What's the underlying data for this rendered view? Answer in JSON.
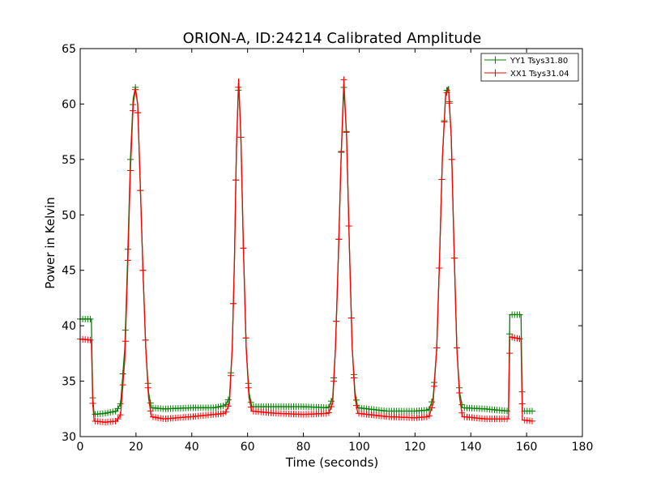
{
  "chart_data": {
    "type": "line",
    "title": "ORION-A, ID:24214 Calibrated Amplitude",
    "xlabel": "Time (seconds)",
    "ylabel": "Power in Kelvin",
    "xlim": [
      0,
      180
    ],
    "ylim": [
      30,
      65
    ],
    "xticks": [
      0,
      20,
      40,
      60,
      80,
      100,
      120,
      140,
      160,
      180
    ],
    "yticks": [
      30,
      35,
      40,
      45,
      50,
      55,
      60,
      65
    ],
    "xtick_labels": [
      "0",
      "20",
      "40",
      "60",
      "80",
      "100",
      "120",
      "140",
      "160",
      "180"
    ],
    "ytick_labels": [
      "30",
      "35",
      "40",
      "45",
      "50",
      "55",
      "60",
      "65"
    ],
    "grid": false,
    "legend_position": "top-right",
    "marker": "+",
    "series": [
      {
        "name": "YY1 Tsys31.80",
        "color": "#008000",
        "points": [
          [
            0,
            40.6
          ],
          [
            4,
            40.6
          ],
          [
            4.5,
            33.5
          ],
          [
            5,
            32.0
          ],
          [
            9,
            32.1
          ],
          [
            13,
            32.3
          ],
          [
            14.5,
            33.0
          ],
          [
            16,
            38.0
          ],
          [
            17,
            46.0
          ],
          [
            18,
            55.0
          ],
          [
            19,
            60.5
          ],
          [
            19.8,
            61.5
          ],
          [
            20.6,
            60.0
          ],
          [
            21.5,
            53.0
          ],
          [
            22.5,
            45.0
          ],
          [
            23.5,
            38.0
          ],
          [
            24.5,
            34.0
          ],
          [
            25.5,
            32.6
          ],
          [
            30,
            32.5
          ],
          [
            40,
            32.6
          ],
          [
            48,
            32.6
          ],
          [
            52,
            32.8
          ],
          [
            53.5,
            33.5
          ],
          [
            54.5,
            38.0
          ],
          [
            55.3,
            46.0
          ],
          [
            56,
            56.0
          ],
          [
            56.8,
            62.0
          ],
          [
            57.6,
            57.0
          ],
          [
            58.5,
            47.0
          ],
          [
            59.5,
            38.0
          ],
          [
            60.5,
            34.0
          ],
          [
            61.5,
            32.7
          ],
          [
            70,
            32.7
          ],
          [
            80,
            32.7
          ],
          [
            89,
            32.6
          ],
          [
            90.5,
            33.5
          ],
          [
            91.5,
            38.0
          ],
          [
            92.5,
            46.0
          ],
          [
            93.5,
            55.0
          ],
          [
            94.5,
            61.5
          ],
          [
            95.5,
            57.0
          ],
          [
            96.5,
            47.0
          ],
          [
            97.5,
            38.0
          ],
          [
            98.5,
            34.0
          ],
          [
            99.5,
            32.6
          ],
          [
            110,
            32.3
          ],
          [
            120,
            32.3
          ],
          [
            125,
            32.4
          ],
          [
            126.5,
            33.5
          ],
          [
            127.8,
            38.0
          ],
          [
            128.8,
            46.0
          ],
          [
            129.8,
            55.0
          ],
          [
            131,
            61.0
          ],
          [
            132,
            61.6
          ],
          [
            133,
            57.0
          ],
          [
            134,
            47.0
          ],
          [
            135,
            38.0
          ],
          [
            136,
            34.0
          ],
          [
            137,
            32.6
          ],
          [
            145,
            32.5
          ],
          [
            153.5,
            32.3
          ],
          [
            154,
            41.0
          ],
          [
            158,
            41.0
          ],
          [
            158.5,
            32.3
          ],
          [
            162,
            32.3
          ]
        ]
      },
      {
        "name": "XX1 Tsys31.04",
        "color": "#ff0000",
        "points": [
          [
            0,
            38.8
          ],
          [
            4,
            38.7
          ],
          [
            4.5,
            33.0
          ],
          [
            5,
            31.4
          ],
          [
            9,
            31.3
          ],
          [
            13,
            31.4
          ],
          [
            14.5,
            32.0
          ],
          [
            16,
            37.0
          ],
          [
            17,
            45.0
          ],
          [
            18,
            54.0
          ],
          [
            19,
            60.0
          ],
          [
            19.8,
            61.3
          ],
          [
            20.6,
            60.0
          ],
          [
            21.5,
            53.0
          ],
          [
            22.5,
            45.0
          ],
          [
            23.5,
            38.0
          ],
          [
            24.5,
            33.5
          ],
          [
            25.5,
            31.8
          ],
          [
            30,
            31.6
          ],
          [
            40,
            31.8
          ],
          [
            48,
            32.0
          ],
          [
            52,
            32.1
          ],
          [
            53.5,
            33.0
          ],
          [
            54.5,
            38.0
          ],
          [
            55.3,
            46.0
          ],
          [
            56,
            56.0
          ],
          [
            56.8,
            62.3
          ],
          [
            57.6,
            57.0
          ],
          [
            58.5,
            47.0
          ],
          [
            59.5,
            38.0
          ],
          [
            60.5,
            33.5
          ],
          [
            61.5,
            32.3
          ],
          [
            70,
            32.1
          ],
          [
            80,
            32.0
          ],
          [
            89,
            32.1
          ],
          [
            90.5,
            33.0
          ],
          [
            91.5,
            38.0
          ],
          [
            92.5,
            46.0
          ],
          [
            93.5,
            55.0
          ],
          [
            94.5,
            62.2
          ],
          [
            95.5,
            57.0
          ],
          [
            96.5,
            47.0
          ],
          [
            97.5,
            38.0
          ],
          [
            98.5,
            33.5
          ],
          [
            99.5,
            32.1
          ],
          [
            110,
            31.8
          ],
          [
            120,
            31.7
          ],
          [
            125,
            31.8
          ],
          [
            126.5,
            33.0
          ],
          [
            127.8,
            38.0
          ],
          [
            128.8,
            46.0
          ],
          [
            129.8,
            55.0
          ],
          [
            131,
            60.8
          ],
          [
            132,
            61.4
          ],
          [
            133,
            57.0
          ],
          [
            134,
            47.0
          ],
          [
            135,
            38.0
          ],
          [
            136,
            33.5
          ],
          [
            137,
            31.8
          ],
          [
            145,
            31.6
          ],
          [
            153.5,
            31.6
          ],
          [
            154,
            39.0
          ],
          [
            158,
            38.8
          ],
          [
            158.5,
            31.5
          ],
          [
            162,
            31.4
          ]
        ]
      }
    ]
  }
}
